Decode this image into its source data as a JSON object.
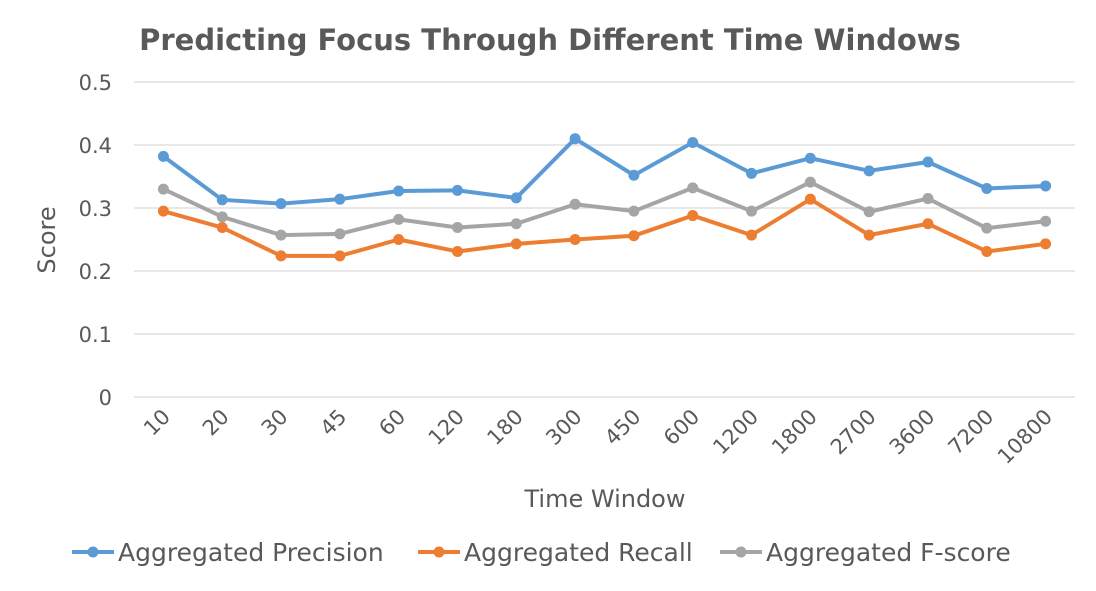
{
  "chart_data": {
    "type": "line",
    "title": "Predicting Focus Through Different Time Windows",
    "xlabel": "Time Window",
    "ylabel": "Score",
    "ylim": [
      0,
      0.5
    ],
    "yticks": [
      "0",
      "0.1",
      "0.2",
      "0.3",
      "0.4",
      "0.5"
    ],
    "grid": true,
    "legend_position": "bottom",
    "categories": [
      "10",
      "20",
      "30",
      "45",
      "60",
      "120",
      "180",
      "300",
      "450",
      "600",
      "1200",
      "1800",
      "2700",
      "3600",
      "7200",
      "10800"
    ],
    "series": [
      {
        "name": "Aggregated Precision",
        "color": "#5b9bd5",
        "values": [
          0.382,
          0.313,
          0.307,
          0.314,
          0.327,
          0.328,
          0.316,
          0.41,
          0.352,
          0.404,
          0.355,
          0.379,
          0.359,
          0.373,
          0.331,
          0.335
        ]
      },
      {
        "name": "Aggregated Recall",
        "color": "#ed7d31",
        "values": [
          0.295,
          0.269,
          0.224,
          0.224,
          0.25,
          0.231,
          0.243,
          0.25,
          0.256,
          0.288,
          0.257,
          0.314,
          0.257,
          0.275,
          0.231,
          0.243
        ]
      },
      {
        "name": "Aggregated F-score",
        "color": "#a5a5a5",
        "values": [
          0.33,
          0.286,
          0.257,
          0.259,
          0.282,
          0.269,
          0.275,
          0.306,
          0.295,
          0.332,
          0.295,
          0.341,
          0.294,
          0.315,
          0.268,
          0.279
        ]
      }
    ]
  }
}
